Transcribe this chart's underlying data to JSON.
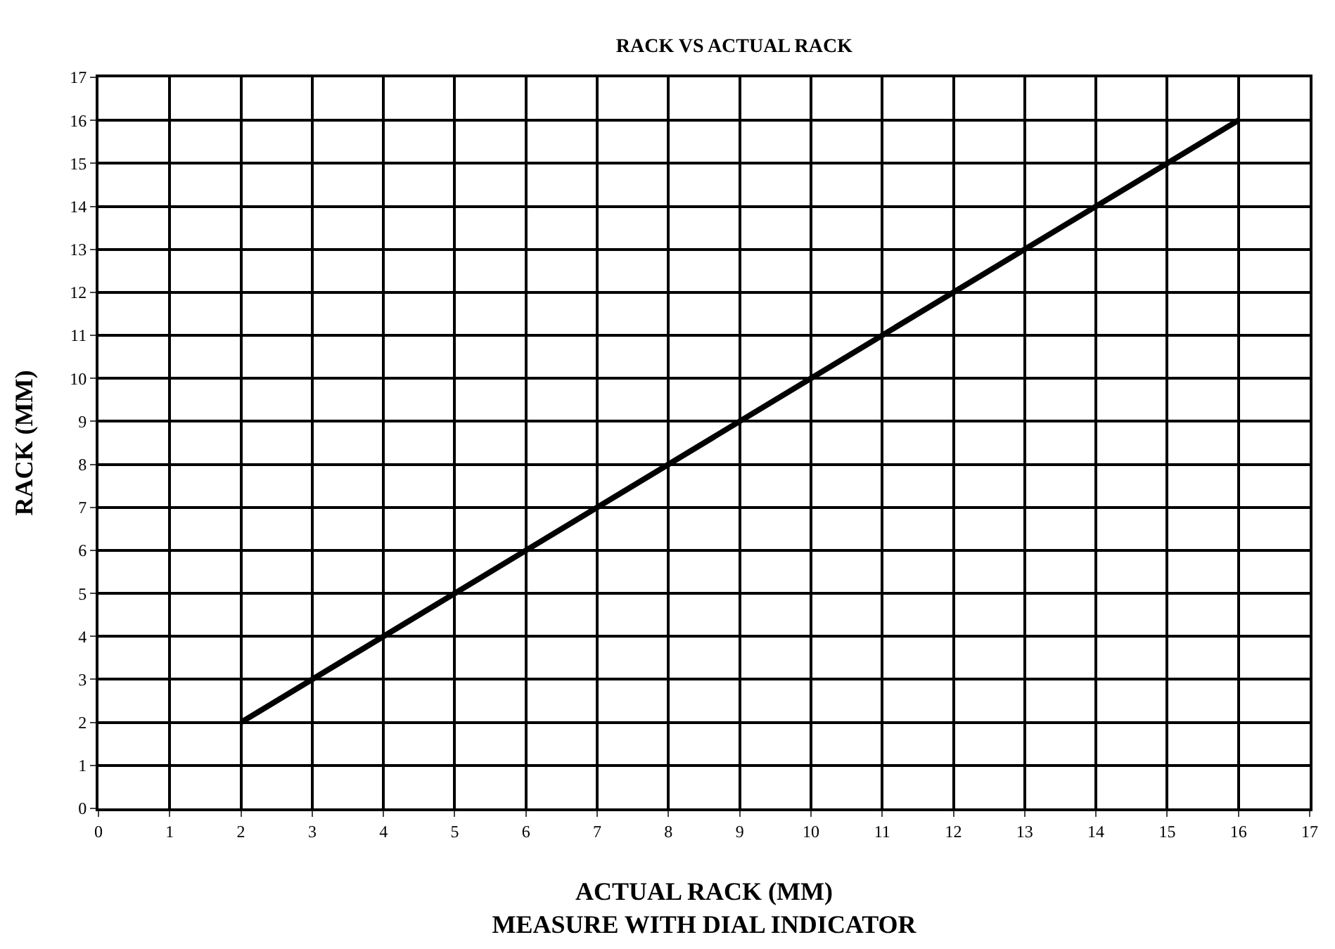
{
  "chart_data": {
    "type": "line",
    "title": "RACK VS ACTUAL RACK",
    "xlabel": "ACTUAL RACK (MM)\nMEASURE WITH DIAL INDICATOR",
    "ylabel": "RACK (MM)",
    "x": [
      2,
      16
    ],
    "series": [
      {
        "color": "#000000",
        "values": [
          2,
          16
        ]
      }
    ],
    "xlim": [
      0,
      17
    ],
    "xticks": [
      0,
      1,
      2,
      3,
      4,
      5,
      6,
      7,
      8,
      9,
      10,
      11,
      12,
      13,
      14,
      15,
      16,
      17
    ],
    "ylim": [
      0,
      17
    ],
    "yticks": [
      0,
      1,
      2,
      3,
      4,
      5,
      6,
      7,
      8,
      9,
      10,
      11,
      12,
      13,
      14,
      15,
      16,
      17
    ],
    "grid": true,
    "marker": "none",
    "line_style": "solid"
  }
}
